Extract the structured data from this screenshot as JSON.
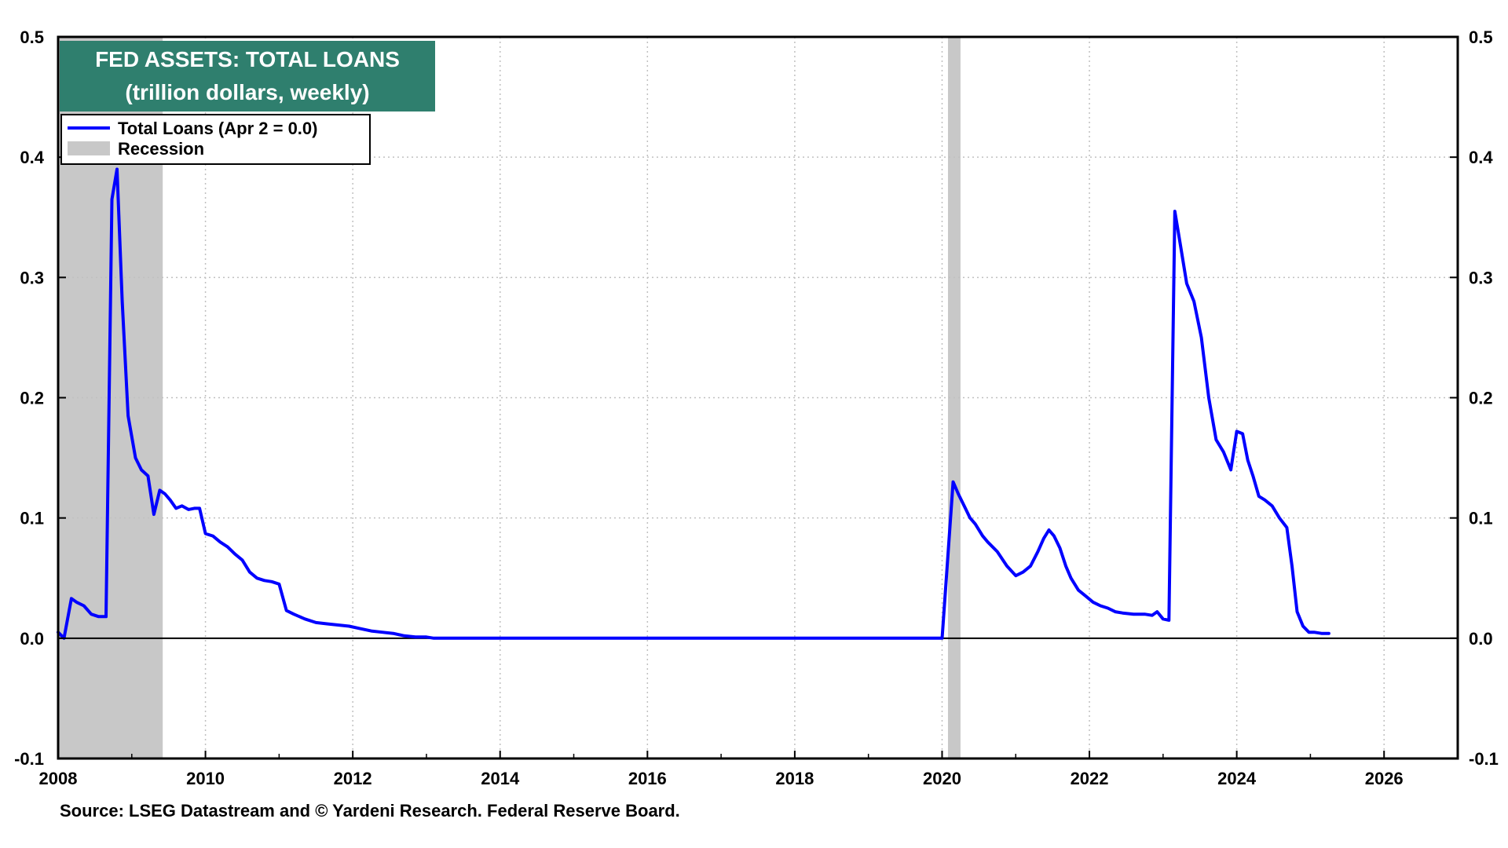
{
  "chart_data": {
    "type": "line",
    "title": "FED ASSETS: TOTAL LOANS",
    "subtitle": "(trillion dollars, weekly)",
    "source": "Source: LSEG Datastream and © Yardeni Research. Federal Reserve Board.",
    "xlim": [
      2008,
      2027
    ],
    "ylim": [
      -0.1,
      0.5
    ],
    "x_ticks": [
      "2008",
      "2010",
      "2012",
      "2014",
      "2016",
      "2018",
      "2020",
      "2022",
      "2024",
      "2026"
    ],
    "y_ticks": [
      "-0.1",
      "0.0",
      "0.1",
      "0.2",
      "0.3",
      "0.4",
      "0.5"
    ],
    "grid": true,
    "legend_position": "top-left",
    "legend": [
      {
        "label": "Total Loans (Apr 2 = 0.0)",
        "kind": "line",
        "color": "#0000ff"
      },
      {
        "label": "Recession",
        "kind": "area",
        "color": "#c8c8c8"
      }
    ],
    "recessions": [
      {
        "start": 2008.0,
        "end": 2009.42
      },
      {
        "start": 2020.08,
        "end": 2020.25
      }
    ],
    "series": [
      {
        "name": "Total Loans (Apr 2 = 0.0)",
        "color": "#0000ff",
        "x": [
          2008.0,
          2008.08,
          2008.18,
          2008.25,
          2008.35,
          2008.45,
          2008.55,
          2008.65,
          2008.73,
          2008.8,
          2008.87,
          2008.95,
          2009.05,
          2009.13,
          2009.22,
          2009.3,
          2009.38,
          2009.45,
          2009.52,
          2009.6,
          2009.68,
          2009.77,
          2009.85,
          2009.92,
          2010.0,
          2010.1,
          2010.2,
          2010.3,
          2010.4,
          2010.5,
          2010.6,
          2010.7,
          2010.8,
          2010.9,
          2011.0,
          2011.1,
          2011.2,
          2011.35,
          2011.5,
          2011.65,
          2011.8,
          2011.95,
          2012.1,
          2012.25,
          2012.4,
          2012.55,
          2012.7,
          2012.85,
          2013.0,
          2013.1,
          2014.0,
          2016.0,
          2018.0,
          2020.0,
          2020.15,
          2020.22,
          2020.3,
          2020.38,
          2020.45,
          2020.55,
          2020.62,
          2020.75,
          2020.88,
          2021.0,
          2021.1,
          2021.2,
          2021.3,
          2021.38,
          2021.45,
          2021.52,
          2021.6,
          2021.68,
          2021.75,
          2021.85,
          2021.95,
          2022.05,
          2022.15,
          2022.25,
          2022.35,
          2022.45,
          2022.6,
          2022.75,
          2022.85,
          2022.92,
          2023.0,
          2023.08,
          2023.16,
          2023.24,
          2023.32,
          2023.42,
          2023.52,
          2023.62,
          2023.72,
          2023.82,
          2023.92,
          2024.0,
          2024.08,
          2024.15,
          2024.22,
          2024.3,
          2024.38,
          2024.48,
          2024.58,
          2024.68,
          2024.75,
          2024.82,
          2024.9,
          2024.98,
          2025.05,
          2025.15,
          2025.25
        ],
        "y": [
          0.005,
          0.0,
          0.033,
          0.03,
          0.027,
          0.02,
          0.018,
          0.018,
          0.365,
          0.39,
          0.28,
          0.185,
          0.15,
          0.14,
          0.135,
          0.103,
          0.123,
          0.12,
          0.115,
          0.108,
          0.11,
          0.107,
          0.108,
          0.108,
          0.087,
          0.085,
          0.08,
          0.076,
          0.07,
          0.065,
          0.055,
          0.05,
          0.048,
          0.047,
          0.045,
          0.023,
          0.02,
          0.016,
          0.013,
          0.012,
          0.011,
          0.01,
          0.008,
          0.006,
          0.005,
          0.004,
          0.002,
          0.001,
          0.001,
          0.0,
          0.0,
          0.0,
          0.0,
          0.0,
          0.13,
          0.12,
          0.11,
          0.1,
          0.095,
          0.085,
          0.08,
          0.072,
          0.06,
          0.052,
          0.055,
          0.06,
          0.072,
          0.083,
          0.09,
          0.085,
          0.075,
          0.06,
          0.05,
          0.04,
          0.035,
          0.03,
          0.027,
          0.025,
          0.022,
          0.021,
          0.02,
          0.02,
          0.019,
          0.022,
          0.016,
          0.015,
          0.355,
          0.325,
          0.295,
          0.28,
          0.25,
          0.2,
          0.165,
          0.155,
          0.14,
          0.172,
          0.17,
          0.148,
          0.135,
          0.118,
          0.115,
          0.11,
          0.1,
          0.092,
          0.06,
          0.022,
          0.01,
          0.005,
          0.005,
          0.004,
          0.004
        ]
      }
    ]
  }
}
